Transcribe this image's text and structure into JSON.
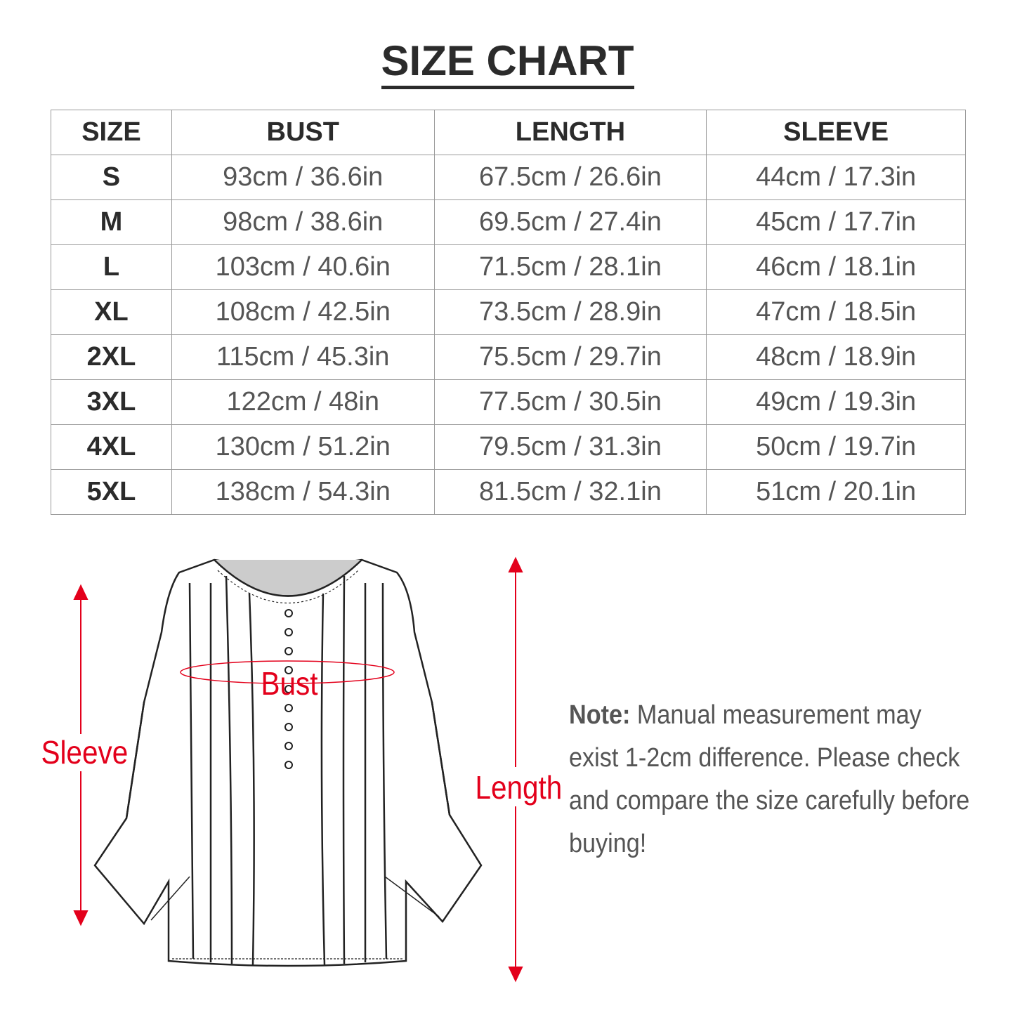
{
  "title": "SIZE CHART",
  "table": {
    "headers": [
      "SIZE",
      "BUST",
      "LENGTH",
      "SLEEVE"
    ],
    "rows": [
      [
        "S",
        "93cm / 36.6in",
        "67.5cm / 26.6in",
        "44cm / 17.3in"
      ],
      [
        "M",
        "98cm / 38.6in",
        "69.5cm / 27.4in",
        "45cm / 17.7in"
      ],
      [
        "L",
        "103cm / 40.6in",
        "71.5cm / 28.1in",
        "46cm / 18.1in"
      ],
      [
        "XL",
        "108cm / 42.5in",
        "73.5cm / 28.9in",
        "47cm / 18.5in"
      ],
      [
        "2XL",
        "115cm / 45.3in",
        "75.5cm / 29.7in",
        "48cm / 18.9in"
      ],
      [
        "3XL",
        "122cm / 48in",
        "77.5cm / 30.5in",
        "49cm / 19.3in"
      ],
      [
        "4XL",
        "130cm / 51.2in",
        "79.5cm / 31.3in",
        "50cm / 19.7in"
      ],
      [
        "5XL",
        "138cm / 54.3in",
        "81.5cm / 32.1in",
        "51cm / 20.1in"
      ]
    ]
  },
  "diagram": {
    "sleeve": "Sleeve",
    "bust": "Bust",
    "length": "Length",
    "accent": "#e3001b"
  },
  "note": {
    "label": "Note:",
    "text": "Manual measurement may exist 1-2cm difference. Please check and compare the size carefully before buying!"
  }
}
